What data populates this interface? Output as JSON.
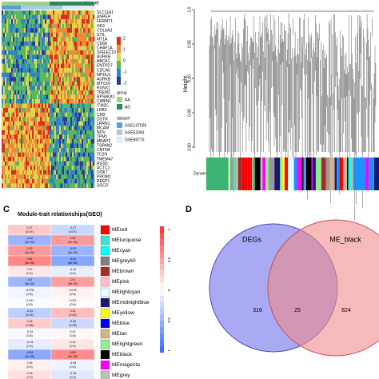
{
  "panel_a": {
    "top_label": "dataset",
    "genes": [
      "SLC11A1",
      "ANPEP",
      "FERMT1",
      "HK3",
      "COL6A3",
      "STIL",
      "MT1A",
      "CD68",
      "CHAF1A",
      "SIGLEC10",
      "AURKB",
      "ABCA1",
      "ENTPD7",
      "CDCA5",
      "MPDU1",
      "AURKB",
      "MYO1F",
      "RUNX1",
      "TREM2",
      "RPS6KA1",
      "CABIN1",
      "ITM2C",
      "LDB3",
      "CKB",
      "DSTN",
      "LRRN1",
      "MCAM",
      "NOV",
      "TPM1",
      "MRAP2",
      "TSPAN2",
      "CNTN4",
      "TC2N",
      "TMEM47",
      "RGS5",
      "ACTC1",
      "DOK7",
      "PROM1",
      "REEP1",
      "SGCD"
    ],
    "scale_labels": [
      "2",
      "1",
      "0",
      "-1",
      "-2"
    ],
    "group_title": "group",
    "groups": [
      "AA",
      "AD"
    ],
    "dataset_title": "dataset",
    "datasets": [
      "GSE147026",
      "GSE52093",
      "GSE98770"
    ]
  },
  "panel_b": {
    "axis_label": "Height",
    "ticks": [
      "1.0",
      "0.95",
      "0.90",
      "0.85",
      "0.80"
    ],
    "bar_label": "Dynamic Tree Cut"
  },
  "panel_c": {
    "letter": "C",
    "title": "Module-trait relationships(GEO)",
    "rows": [
      {
        "module": "MEred",
        "cells": [
          {
            "r": 0.27,
            "p": "(0.07)"
          },
          {
            "r": -0.27,
            "p": "(0.07)"
          }
        ]
      },
      {
        "module": "MEturquoise",
        "cells": [
          {
            "r": -0.52,
            "p": "(2e-04)"
          },
          {
            "r": 0.52,
            "p": "(2e-04)"
          }
        ]
      },
      {
        "module": "MEcyan",
        "cells": [
          {
            "r": 0.52,
            "p": "(2e-04)"
          },
          {
            "r": -0.52,
            "p": "(2e-04)"
          }
        ]
      },
      {
        "module": "MEgrey60",
        "cells": [
          {
            "r": 0.61,
            "p": "(8e-06)"
          },
          {
            "r": -0.61,
            "p": "(8e-06)"
          }
        ]
      },
      {
        "module": "MEbrown",
        "cells": [
          {
            "r": 0.12,
            "p": "(0.4)"
          },
          {
            "r": -0.12,
            "p": "(0.4)"
          }
        ]
      },
      {
        "module": "MEpink",
        "cells": [
          {
            "r": -0.5,
            "p": "(5e-04)"
          },
          {
            "r": 0.5,
            "p": "(5e-04)"
          }
        ]
      },
      {
        "module": "MElightcyan",
        "cells": [
          {
            "r": -0.078,
            "p": "(0.6)"
          },
          {
            "r": 0.078,
            "p": "(0.6)"
          }
        ]
      },
      {
        "module": "MEmidnightblue",
        "cells": [
          {
            "r": -0.031,
            "p": "(0.8)"
          },
          {
            "r": 0.031,
            "p": "(0.8)"
          }
        ]
      },
      {
        "module": "MEyellow",
        "cells": [
          {
            "r": -0.34,
            "p": "(0.02)"
          },
          {
            "r": 0.34,
            "p": "(0.02)"
          }
        ]
      },
      {
        "module": "MEblue",
        "cells": [
          {
            "r": 0.26,
            "p": "(0.08)"
          },
          {
            "r": -0.26,
            "p": "(0.08)"
          }
        ]
      },
      {
        "module": "MEtan",
        "cells": [
          {
            "r": -0.04,
            "p": "(0.8)"
          },
          {
            "r": 0.04,
            "p": "(0.8)"
          }
        ]
      },
      {
        "module": "MElightgreen",
        "cells": [
          {
            "r": -0.13,
            "p": "(0.4)"
          },
          {
            "r": 0.13,
            "p": "(0.4)"
          }
        ]
      },
      {
        "module": "MEblack",
        "cells": [
          {
            "r": -0.59,
            "p": "(2e-05)"
          },
          {
            "r": 0.59,
            "p": "(2e-05)"
          }
        ]
      },
      {
        "module": "MEmagenta",
        "cells": [
          {
            "r": 0.08,
            "p": "(0.6)"
          },
          {
            "r": -0.08,
            "p": "(0.6)"
          }
        ]
      },
      {
        "module": "MEgrey",
        "cells": [
          {
            "r": 0.16,
            "p": "(0.3)"
          },
          {
            "r": -0.16,
            "p": "(0.3)"
          }
        ]
      }
    ],
    "scale_labels": [
      "1",
      "0.5",
      "0",
      "-0.5",
      "-1"
    ]
  },
  "panel_d": {
    "letter": "D",
    "left_set": "DEGs",
    "right_set": "ME_black",
    "left_only": "316",
    "both": "25",
    "right_only": "824"
  }
}
